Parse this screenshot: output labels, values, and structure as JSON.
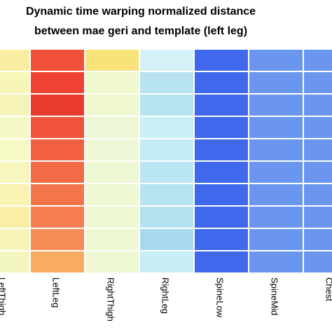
{
  "chart_data": {
    "type": "heatmap",
    "title": "Dynamic time warping normalized distance",
    "subtitle": "between mae geri and template (left leg)",
    "columns": [
      "LeftThigh",
      "LeftLeg",
      "RightThigh",
      "RightLeg",
      "SpineLow",
      "SpineMid",
      "Chest"
    ],
    "row_count": 10,
    "values": [
      [
        0.72,
        0.9,
        0.7,
        0.45,
        0.05,
        0.16,
        0.16
      ],
      [
        0.6,
        0.94,
        0.58,
        0.4,
        0.05,
        0.16,
        0.16
      ],
      [
        0.58,
        0.96,
        0.57,
        0.4,
        0.05,
        0.16,
        0.16
      ],
      [
        0.57,
        0.91,
        0.55,
        0.48,
        0.05,
        0.16,
        0.16
      ],
      [
        0.59,
        0.88,
        0.55,
        0.46,
        0.05,
        0.16,
        0.16
      ],
      [
        0.6,
        0.87,
        0.56,
        0.42,
        0.05,
        0.16,
        0.16
      ],
      [
        0.61,
        0.85,
        0.56,
        0.39,
        0.05,
        0.16,
        0.16
      ],
      [
        0.63,
        0.83,
        0.56,
        0.4,
        0.05,
        0.16,
        0.16
      ],
      [
        0.58,
        0.8,
        0.56,
        0.36,
        0.05,
        0.16,
        0.16
      ],
      [
        0.57,
        0.75,
        0.57,
        0.47,
        0.05,
        0.16,
        0.16
      ]
    ],
    "colors": [
      [
        "#f9eda2",
        "#f0503a",
        "#f8e27a",
        "#d4f1f8",
        "#3f68ec",
        "#6a96f0",
        "#6a96f0"
      ],
      [
        "#f7f5b8",
        "#ee4334",
        "#eff8cf",
        "#b7e3f1",
        "#3f68ec",
        "#6a96f0",
        "#6a96f0"
      ],
      [
        "#f5f3b8",
        "#e83a2f",
        "#eff8cf",
        "#b7e3f1",
        "#3f68ec",
        "#6a96f0",
        "#6a96f0"
      ],
      [
        "#f4f7c6",
        "#f0533b",
        "#eef8d6",
        "#c9eff6",
        "#3f68ec",
        "#6a96f0",
        "#6a96f0"
      ],
      [
        "#f6f8c6",
        "#f1603f",
        "#eef8d6",
        "#c2ebf4",
        "#3f68ec",
        "#6a96f0",
        "#6a96f0"
      ],
      [
        "#f7f6bc",
        "#f26b47",
        "#eef8d4",
        "#b9e6f2",
        "#3f68ec",
        "#6a96f0",
        "#6a96f0"
      ],
      [
        "#f8f3b2",
        "#f4744b",
        "#eef8d2",
        "#b5e3f1",
        "#3f68ec",
        "#6a96f0",
        "#6a96f0"
      ],
      [
        "#f9eea6",
        "#f57f52",
        "#eef8d2",
        "#b3e1f0",
        "#3f68ec",
        "#6a96f0",
        "#6a96f0"
      ],
      [
        "#f6f4b8",
        "#f88c58",
        "#eef8d2",
        "#a6d9ee",
        "#3f68ec",
        "#6a96f0",
        "#6a96f0"
      ],
      [
        "#f4f6c2",
        "#fbaa62",
        "#eef8d2",
        "#c7eef5",
        "#3f68ec",
        "#6a96f0",
        "#6a96f0"
      ]
    ],
    "grid": true,
    "legend": "none"
  }
}
